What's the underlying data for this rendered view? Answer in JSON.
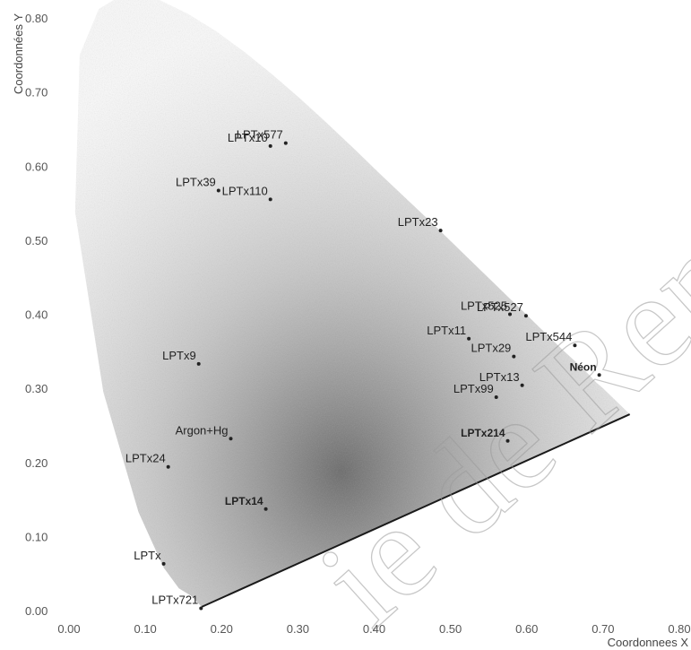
{
  "chart_data": {
    "type": "scatter",
    "title": "",
    "xlabel": "Coordonnees X",
    "ylabel": "Coordonnées Y",
    "xlim": [
      0.0,
      0.8
    ],
    "ylim": [
      0.0,
      0.8
    ],
    "xticks": [
      "0.00",
      "0.10",
      "0.20",
      "0.30",
      "0.40",
      "0.50",
      "0.60",
      "0.70",
      "0.80"
    ],
    "yticks": [
      "0.00",
      "0.10",
      "0.20",
      "0.30",
      "0.40",
      "0.50",
      "0.60",
      "0.70",
      "0.80"
    ],
    "grid": false,
    "points": [
      {
        "label": "LPTx577",
        "x": 0.284,
        "y": 0.631
      },
      {
        "label": "LPTx10",
        "x": 0.264,
        "y": 0.627
      },
      {
        "label": "LPTx39",
        "x": 0.196,
        "y": 0.567
      },
      {
        "label": "LPTx110",
        "x": 0.264,
        "y": 0.555
      },
      {
        "label": "LPTx23",
        "x": 0.487,
        "y": 0.513
      },
      {
        "label": "LPTx525",
        "x": 0.578,
        "y": 0.4
      },
      {
        "label": "LPTx527",
        "x": 0.599,
        "y": 0.398
      },
      {
        "label": "LPTx11",
        "x": 0.524,
        "y": 0.367
      },
      {
        "label": "LPTx544",
        "x": 0.663,
        "y": 0.358
      },
      {
        "label": "LPTx29",
        "x": 0.583,
        "y": 0.343
      },
      {
        "label": "LPTx9",
        "x": 0.17,
        "y": 0.333
      },
      {
        "label": "Néon",
        "x": 0.695,
        "y": 0.318
      },
      {
        "label": "LPTx13",
        "x": 0.594,
        "y": 0.304
      },
      {
        "label": "LPTx99",
        "x": 0.56,
        "y": 0.288
      },
      {
        "label": "Argon+Hg",
        "x": 0.212,
        "y": 0.232
      },
      {
        "label": "LPTx214",
        "x": 0.575,
        "y": 0.229
      },
      {
        "label": "LPTx24",
        "x": 0.13,
        "y": 0.194
      },
      {
        "label": "LPTx14",
        "x": 0.258,
        "y": 0.137
      },
      {
        "label": "LPTx",
        "x": 0.124,
        "y": 0.063
      },
      {
        "label": "LPTx721",
        "x": 0.173,
        "y": 0.003
      }
    ],
    "watermark": "ie de Renn",
    "accent_color": "#7a7a7a"
  }
}
